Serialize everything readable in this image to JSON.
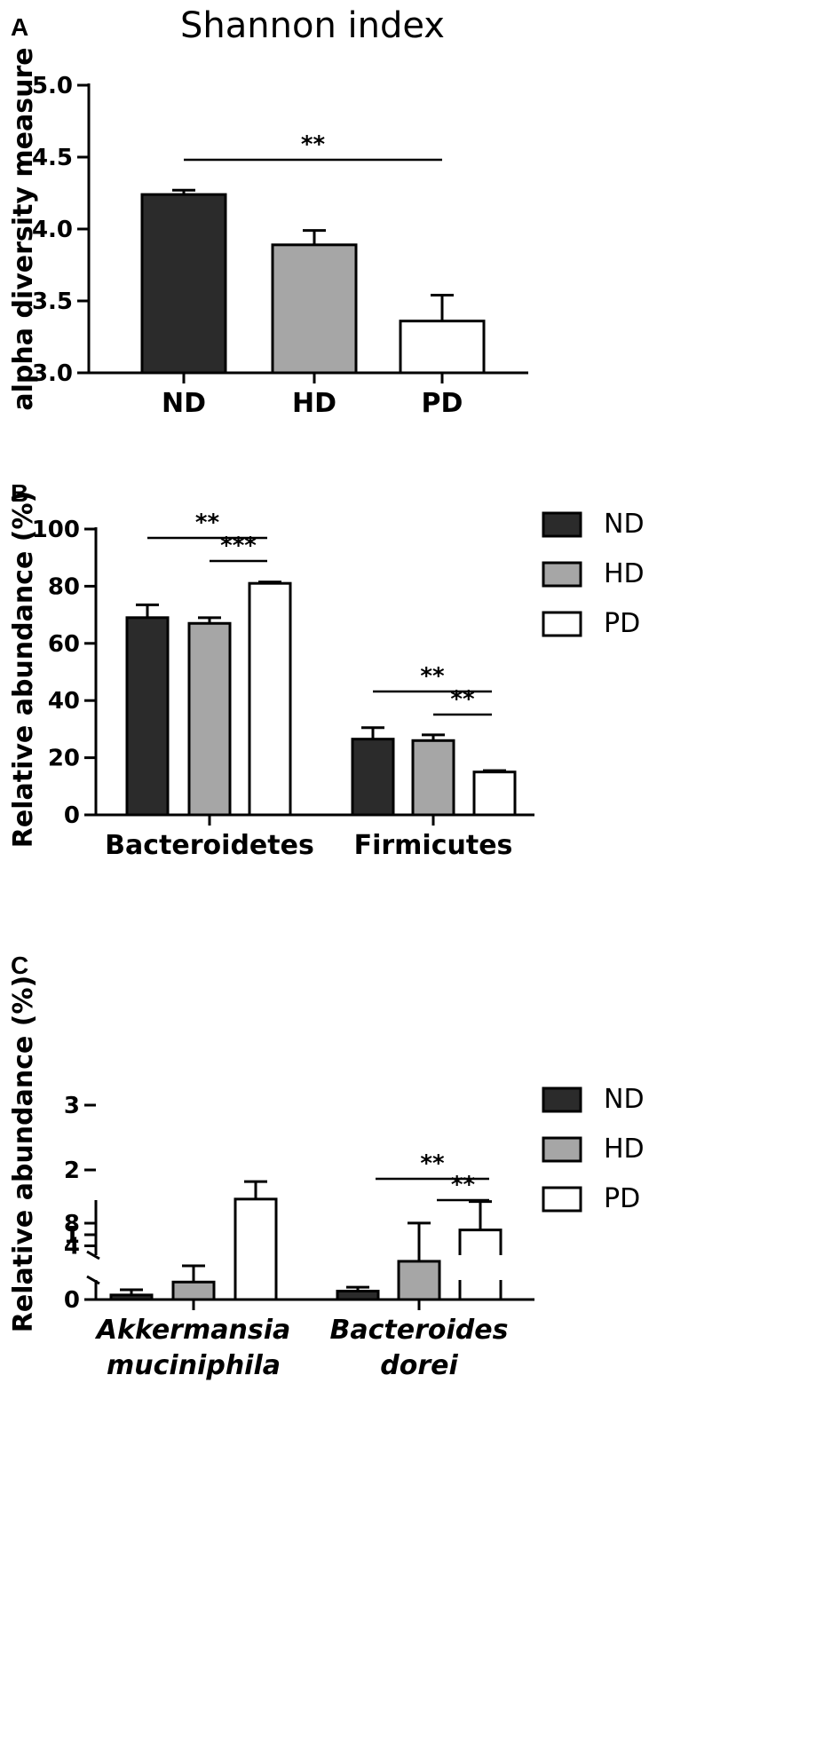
{
  "colors": {
    "ND": "#2b2b2b",
    "HD": "#a6a6a6",
    "PD": "#ffffff",
    "axis": "#000000"
  },
  "chart_data": [
    {
      "panel": "A",
      "type": "bar",
      "title": "Shannon index",
      "ylabel": "alpha diversity measure",
      "ylim": [
        3.0,
        5.0
      ],
      "yticks": [
        "3.0",
        "3.5",
        "4.0",
        "4.5",
        "5.0"
      ],
      "categories": [
        "ND",
        "HD",
        "PD"
      ],
      "values": [
        4.24,
        3.89,
        3.36
      ],
      "errors": [
        0.03,
        0.1,
        0.18
      ],
      "significance": [
        {
          "from": 0,
          "to": 2,
          "label": "**"
        }
      ]
    },
    {
      "panel": "B",
      "type": "bar",
      "ylabel": "Relative abundance (%)",
      "ylim": [
        0,
        100
      ],
      "yticks": [
        "0",
        "20",
        "40",
        "60",
        "80",
        "100"
      ],
      "categories": [
        "Bacteroidetes",
        "Firmicutes"
      ],
      "series": [
        {
          "name": "ND",
          "values": [
            69,
            26.5
          ],
          "errors": [
            4.5,
            4.0
          ]
        },
        {
          "name": "HD",
          "values": [
            67,
            26
          ],
          "errors": [
            2.0,
            2.0
          ]
        },
        {
          "name": "PD",
          "values": [
            81,
            15
          ],
          "errors": [
            0.5,
            0.5
          ]
        }
      ],
      "significance": [
        {
          "category": 0,
          "from": 0,
          "to": 2,
          "label": "**"
        },
        {
          "category": 0,
          "from": 1,
          "to": 2,
          "label": "***"
        },
        {
          "category": 1,
          "from": 0,
          "to": 2,
          "label": "**"
        },
        {
          "category": 1,
          "from": 1,
          "to": 2,
          "label": "**"
        }
      ],
      "legend": [
        "ND",
        "HD",
        "PD"
      ],
      "legend_position": "right"
    },
    {
      "panel": "C",
      "type": "bar",
      "ylabel": "Relative abundance (%)",
      "axis_break": true,
      "yticks_lower": [
        "0",
        "1",
        "2",
        "3"
      ],
      "yticks_upper": [
        "4",
        "8"
      ],
      "categories": [
        [
          "Akkermansia",
          "muciniphila"
        ],
        [
          "Bacteroides",
          "dorei"
        ]
      ],
      "series": [
        {
          "name": "ND",
          "values": [
            0.07,
            0.13
          ],
          "errors": [
            0.08,
            0.06
          ]
        },
        {
          "name": "HD",
          "values": [
            0.27,
            0.59
          ],
          "errors": [
            0.25,
            0.59
          ]
        },
        {
          "name": "PD",
          "values": [
            1.55,
            6.8
          ],
          "errors": [
            0.27,
            2.2
          ]
        }
      ],
      "significance": [
        {
          "category": 1,
          "from": 0,
          "to": 2,
          "label": "**"
        },
        {
          "category": 1,
          "from": 1,
          "to": 2,
          "label": "**"
        }
      ],
      "legend": [
        "ND",
        "HD",
        "PD"
      ],
      "legend_position": "right"
    }
  ]
}
